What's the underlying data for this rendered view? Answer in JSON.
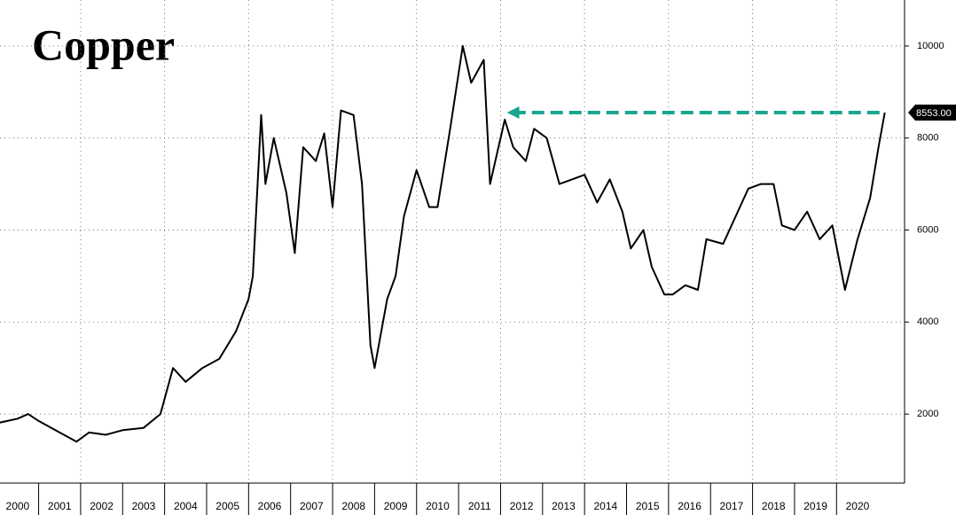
{
  "chart_data": {
    "type": "line",
    "title": "Copper",
    "x": [
      2000.0,
      2000.5,
      2000.75,
      2001.0,
      2001.5,
      2001.9,
      2002.2,
      2002.6,
      2003.0,
      2003.5,
      2003.9,
      2004.2,
      2004.5,
      2004.9,
      2005.3,
      2005.7,
      2006.0,
      2006.1,
      2006.3,
      2006.4,
      2006.6,
      2006.9,
      2007.1,
      2007.3,
      2007.6,
      2007.8,
      2008.0,
      2008.2,
      2008.5,
      2008.7,
      2008.9,
      2009.0,
      2009.3,
      2009.5,
      2009.7,
      2010.0,
      2010.3,
      2010.5,
      2010.8,
      2011.1,
      2011.3,
      2011.6,
      2011.75,
      2011.9,
      2012.1,
      2012.3,
      2012.6,
      2012.8,
      2013.1,
      2013.4,
      2013.7,
      2014.0,
      2014.3,
      2014.6,
      2014.9,
      2015.1,
      2015.4,
      2015.6,
      2015.9,
      2016.1,
      2016.4,
      2016.7,
      2016.9,
      2017.3,
      2017.6,
      2017.9,
      2018.2,
      2018.5,
      2018.7,
      2019.0,
      2019.3,
      2019.6,
      2019.9,
      2020.2,
      2020.5,
      2020.8,
      2021.0,
      2021.15
    ],
    "series": [
      {
        "name": "Copper",
        "color": "#000000",
        "values": [
          1800,
          1900,
          2000,
          1850,
          1600,
          1400,
          1600,
          1550,
          1650,
          1700,
          2000,
          3000,
          2700,
          3000,
          3200,
          3800,
          4500,
          5000,
          8500,
          7000,
          8000,
          6800,
          5500,
          7800,
          7500,
          8100,
          6500,
          8600,
          8500,
          7000,
          3500,
          3000,
          4500,
          5000,
          6300,
          7300,
          6500,
          6500,
          8200,
          10000,
          9200,
          9700,
          7000,
          7600,
          8400,
          7800,
          7500,
          8200,
          8000,
          7000,
          7100,
          7200,
          6600,
          7100,
          6400,
          5600,
          6000,
          5200,
          4600,
          4600,
          4800,
          4700,
          5800,
          5700,
          6300,
          6900,
          7000,
          7000,
          6100,
          6000,
          6400,
          5800,
          6100,
          4700,
          5800,
          6700,
          7800,
          8553
        ]
      }
    ],
    "last_value_label": "8553.00",
    "xlim": [
      2000.08,
      2021.62
    ],
    "xticks": [
      2000,
      2001,
      2002,
      2003,
      2004,
      2005,
      2006,
      2007,
      2008,
      2009,
      2010,
      2011,
      2012,
      2013,
      2014,
      2015,
      2016,
      2017,
      2018,
      2019,
      2020
    ],
    "ylim": [
      500,
      11000
    ],
    "yticks": [
      2000,
      4000,
      6000,
      8000,
      10000
    ],
    "grid": true,
    "arrow_color": "#1aa58f"
  }
}
